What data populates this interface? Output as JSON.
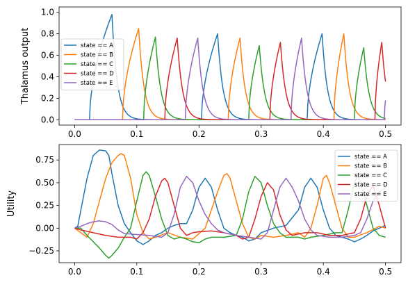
{
  "chart_data": [
    {
      "type": "line",
      "ylabel": "Thalamus output",
      "xlim": [
        -0.025,
        0.525
      ],
      "ylim": [
        -0.05,
        1.05
      ],
      "xticks": [
        "0.0",
        "0.1",
        "0.2",
        "0.3",
        "0.4",
        "0.5"
      ],
      "xtick_values": [
        0.0,
        0.1,
        0.2,
        0.3,
        0.4,
        0.5
      ],
      "yticks": [
        "0.0",
        "0.2",
        "0.4",
        "0.6",
        "0.8",
        "1.0"
      ],
      "ytick_values": [
        0.0,
        0.2,
        0.4,
        0.6,
        0.8,
        1.0
      ],
      "legend_position": "center-left",
      "series": [
        {
          "name": "state == A",
          "color": "#1f77b4",
          "pulses": [
            {
              "onset": 0.024,
              "peak_t": 0.06,
              "amp": 0.98
            },
            {
              "onset": 0.204,
              "peak_t": 0.23,
              "amp": 0.8
            },
            {
              "onset": 0.374,
              "peak_t": 0.398,
              "amp": 0.8
            }
          ]
        },
        {
          "name": "state == B",
          "color": "#ff7f0e",
          "pulses": [
            {
              "onset": 0.077,
              "peak_t": 0.103,
              "amp": 0.85
            },
            {
              "onset": 0.247,
              "peak_t": 0.266,
              "amp": 0.76
            },
            {
              "onset": 0.417,
              "peak_t": 0.433,
              "amp": 0.8
            }
          ]
        },
        {
          "name": "state == C",
          "color": "#2ca02c",
          "pulses": [
            {
              "onset": 0.111,
              "peak_t": 0.13,
              "amp": 0.77
            },
            {
              "onset": 0.28,
              "peak_t": 0.297,
              "amp": 0.69
            },
            {
              "onset": 0.45,
              "peak_t": 0.465,
              "amp": 0.67
            }
          ]
        },
        {
          "name": "state == D",
          "color": "#d62728",
          "pulses": [
            {
              "onset": 0.145,
              "peak_t": 0.165,
              "amp": 0.76
            },
            {
              "onset": 0.314,
              "peak_t": 0.331,
              "amp": 0.72
            },
            {
              "onset": 0.483,
              "peak_t": 0.494,
              "amp": 0.72
            }
          ]
        },
        {
          "name": "state == E",
          "color": "#9467bd",
          "pulses": [
            {
              "onset": 0.178,
              "peak_t": 0.198,
              "amp": 0.76
            },
            {
              "onset": 0.348,
              "peak_t": 0.365,
              "amp": 0.76
            },
            {
              "onset": 0.498,
              "peak_t": 0.5,
              "amp": 0.18
            }
          ]
        }
      ]
    },
    {
      "type": "line",
      "ylabel": "Utility",
      "xlim": [
        -0.025,
        0.525
      ],
      "ylim": [
        -0.38,
        0.92
      ],
      "xticks": [
        "0.0",
        "0.1",
        "0.2",
        "0.3",
        "0.4",
        "0.5"
      ],
      "xtick_values": [
        0.0,
        0.1,
        0.2,
        0.3,
        0.4,
        0.5
      ],
      "yticks": [
        "−0.25",
        "0.00",
        "0.25",
        "0.50",
        "0.75"
      ],
      "ytick_values": [
        -0.25,
        0.0,
        0.25,
        0.5,
        0.75
      ],
      "legend_position": "upper-right",
      "series": [
        {
          "name": "state == A",
          "color": "#1f77b4",
          "points": [
            [
              0,
              0
            ],
            [
              0.005,
              0.02
            ],
            [
              0.02,
              0.55
            ],
            [
              0.03,
              0.8
            ],
            [
              0.04,
              0.86
            ],
            [
              0.05,
              0.85
            ],
            [
              0.055,
              0.8
            ],
            [
              0.06,
              0.6
            ],
            [
              0.07,
              0.25
            ],
            [
              0.08,
              0.05
            ],
            [
              0.09,
              -0.05
            ],
            [
              0.1,
              -0.14
            ],
            [
              0.11,
              -0.18
            ],
            [
              0.12,
              -0.14
            ],
            [
              0.13,
              -0.08
            ],
            [
              0.14,
              -0.05
            ],
            [
              0.15,
              0.0
            ],
            [
              0.16,
              0.03
            ],
            [
              0.17,
              0.05
            ],
            [
              0.18,
              0.05
            ],
            [
              0.19,
              0.2
            ],
            [
              0.2,
              0.45
            ],
            [
              0.21,
              0.55
            ],
            [
              0.22,
              0.45
            ],
            [
              0.23,
              0.2
            ],
            [
              0.24,
              0.0
            ],
            [
              0.25,
              -0.05
            ],
            [
              0.26,
              -0.08
            ],
            [
              0.27,
              -0.1
            ],
            [
              0.28,
              -0.14
            ],
            [
              0.29,
              -0.12
            ],
            [
              0.3,
              -0.05
            ],
            [
              0.32,
              0.0
            ],
            [
              0.34,
              0.03
            ],
            [
              0.36,
              0.2
            ],
            [
              0.37,
              0.45
            ],
            [
              0.38,
              0.55
            ],
            [
              0.39,
              0.45
            ],
            [
              0.4,
              0.2
            ],
            [
              0.41,
              0.0
            ],
            [
              0.42,
              -0.08
            ],
            [
              0.43,
              -0.1
            ],
            [
              0.44,
              -0.12
            ],
            [
              0.45,
              -0.15
            ],
            [
              0.46,
              -0.12
            ],
            [
              0.47,
              -0.08
            ],
            [
              0.48,
              -0.03
            ],
            [
              0.49,
              0.0
            ],
            [
              0.5,
              0.03
            ]
          ]
        },
        {
          "name": "state == B",
          "color": "#ff7f0e",
          "points": [
            [
              0,
              0
            ],
            [
              0.01,
              -0.05
            ],
            [
              0.02,
              -0.1
            ],
            [
              0.03,
              0.05
            ],
            [
              0.04,
              0.3
            ],
            [
              0.05,
              0.55
            ],
            [
              0.06,
              0.72
            ],
            [
              0.07,
              0.8
            ],
            [
              0.075,
              0.82
            ],
            [
              0.08,
              0.8
            ],
            [
              0.09,
              0.55
            ],
            [
              0.1,
              0.15
            ],
            [
              0.11,
              -0.05
            ],
            [
              0.12,
              -0.12
            ],
            [
              0.13,
              -0.1
            ],
            [
              0.15,
              -0.05
            ],
            [
              0.17,
              -0.1
            ],
            [
              0.19,
              -0.12
            ],
            [
              0.21,
              0.0
            ],
            [
              0.22,
              0.2
            ],
            [
              0.23,
              0.4
            ],
            [
              0.24,
              0.58
            ],
            [
              0.245,
              0.6
            ],
            [
              0.25,
              0.55
            ],
            [
              0.26,
              0.3
            ],
            [
              0.27,
              0.05
            ],
            [
              0.28,
              -0.1
            ],
            [
              0.29,
              -0.12
            ],
            [
              0.3,
              -0.08
            ],
            [
              0.32,
              -0.1
            ],
            [
              0.34,
              -0.08
            ],
            [
              0.36,
              -0.05
            ],
            [
              0.37,
              -0.1
            ],
            [
              0.38,
              0.0
            ],
            [
              0.39,
              0.25
            ],
            [
              0.4,
              0.55
            ],
            [
              0.405,
              0.58
            ],
            [
              0.41,
              0.5
            ],
            [
              0.42,
              0.25
            ],
            [
              0.43,
              0.0
            ],
            [
              0.44,
              -0.1
            ],
            [
              0.45,
              -0.1
            ],
            [
              0.47,
              -0.05
            ],
            [
              0.49,
              0.02
            ],
            [
              0.5,
              0.0
            ]
          ]
        },
        {
          "name": "state == C",
          "color": "#2ca02c",
          "points": [
            [
              0,
              0
            ],
            [
              0.01,
              0.0
            ],
            [
              0.02,
              -0.08
            ],
            [
              0.03,
              -0.15
            ],
            [
              0.04,
              -0.22
            ],
            [
              0.05,
              -0.3
            ],
            [
              0.055,
              -0.33
            ],
            [
              0.06,
              -0.3
            ],
            [
              0.07,
              -0.22
            ],
            [
              0.08,
              -0.1
            ],
            [
              0.09,
              0.0
            ],
            [
              0.1,
              0.3
            ],
            [
              0.11,
              0.58
            ],
            [
              0.115,
              0.62
            ],
            [
              0.12,
              0.58
            ],
            [
              0.13,
              0.35
            ],
            [
              0.14,
              0.1
            ],
            [
              0.15,
              -0.08
            ],
            [
              0.16,
              -0.12
            ],
            [
              0.17,
              -0.1
            ],
            [
              0.18,
              -0.12
            ],
            [
              0.19,
              -0.15
            ],
            [
              0.2,
              -0.16
            ],
            [
              0.21,
              -0.12
            ],
            [
              0.22,
              -0.1
            ],
            [
              0.24,
              -0.1
            ],
            [
              0.26,
              -0.08
            ],
            [
              0.27,
              0.1
            ],
            [
              0.28,
              0.4
            ],
            [
              0.29,
              0.57
            ],
            [
              0.3,
              0.5
            ],
            [
              0.31,
              0.25
            ],
            [
              0.32,
              0.05
            ],
            [
              0.33,
              -0.05
            ],
            [
              0.34,
              -0.1
            ],
            [
              0.36,
              -0.1
            ],
            [
              0.37,
              -0.12
            ],
            [
              0.38,
              -0.1
            ],
            [
              0.4,
              -0.08
            ],
            [
              0.42,
              -0.05
            ],
            [
              0.43,
              -0.05
            ],
            [
              0.44,
              0.2
            ],
            [
              0.45,
              0.5
            ],
            [
              0.455,
              0.57
            ],
            [
              0.46,
              0.5
            ],
            [
              0.47,
              0.25
            ],
            [
              0.48,
              0.0
            ],
            [
              0.49,
              -0.08
            ],
            [
              0.5,
              -0.1
            ]
          ]
        },
        {
          "name": "state == D",
          "color": "#d62728",
          "points": [
            [
              0,
              0
            ],
            [
              0.01,
              -0.02
            ],
            [
              0.03,
              -0.05
            ],
            [
              0.05,
              -0.08
            ],
            [
              0.07,
              -0.1
            ],
            [
              0.09,
              -0.1
            ],
            [
              0.1,
              -0.12
            ],
            [
              0.11,
              -0.05
            ],
            [
              0.12,
              0.1
            ],
            [
              0.13,
              0.35
            ],
            [
              0.14,
              0.52
            ],
            [
              0.145,
              0.55
            ],
            [
              0.15,
              0.5
            ],
            [
              0.16,
              0.25
            ],
            [
              0.17,
              0.0
            ],
            [
              0.18,
              -0.08
            ],
            [
              0.19,
              -0.05
            ],
            [
              0.2,
              -0.04
            ],
            [
              0.22,
              -0.03
            ],
            [
              0.24,
              -0.05
            ],
            [
              0.26,
              -0.08
            ],
            [
              0.27,
              -0.12
            ],
            [
              0.28,
              -0.1
            ],
            [
              0.29,
              0.1
            ],
            [
              0.3,
              0.35
            ],
            [
              0.31,
              0.5
            ],
            [
              0.32,
              0.42
            ],
            [
              0.33,
              0.15
            ],
            [
              0.34,
              -0.02
            ],
            [
              0.35,
              -0.08
            ],
            [
              0.37,
              -0.05
            ],
            [
              0.39,
              -0.05
            ],
            [
              0.41,
              -0.08
            ],
            [
              0.43,
              -0.08
            ],
            [
              0.45,
              -0.05
            ],
            [
              0.46,
              0.1
            ],
            [
              0.47,
              0.35
            ],
            [
              0.48,
              0.47
            ],
            [
              0.49,
              0.25
            ],
            [
              0.5,
              0.0
            ]
          ]
        },
        {
          "name": "state == E",
          "color": "#9467bd",
          "points": [
            [
              0,
              0
            ],
            [
              0.01,
              0.02
            ],
            [
              0.02,
              0.05
            ],
            [
              0.03,
              0.07
            ],
            [
              0.04,
              0.08
            ],
            [
              0.05,
              0.07
            ],
            [
              0.06,
              0.04
            ],
            [
              0.07,
              -0.02
            ],
            [
              0.08,
              -0.06
            ],
            [
              0.1,
              -0.07
            ],
            [
              0.12,
              -0.08
            ],
            [
              0.14,
              -0.1
            ],
            [
              0.15,
              -0.05
            ],
            [
              0.16,
              0.15
            ],
            [
              0.17,
              0.45
            ],
            [
              0.18,
              0.57
            ],
            [
              0.19,
              0.5
            ],
            [
              0.2,
              0.3
            ],
            [
              0.21,
              0.15
            ],
            [
              0.22,
              0.05
            ],
            [
              0.23,
              -0.02
            ],
            [
              0.24,
              -0.05
            ],
            [
              0.26,
              -0.08
            ],
            [
              0.28,
              -0.1
            ],
            [
              0.3,
              -0.12
            ],
            [
              0.31,
              -0.05
            ],
            [
              0.32,
              0.2
            ],
            [
              0.33,
              0.45
            ],
            [
              0.34,
              0.55
            ],
            [
              0.35,
              0.45
            ],
            [
              0.36,
              0.3
            ],
            [
              0.37,
              0.1
            ],
            [
              0.38,
              -0.02
            ],
            [
              0.39,
              -0.08
            ],
            [
              0.41,
              -0.1
            ],
            [
              0.43,
              -0.1
            ],
            [
              0.45,
              -0.08
            ],
            [
              0.46,
              -0.05
            ],
            [
              0.47,
              0.1
            ],
            [
              0.48,
              0.3
            ],
            [
              0.49,
              0.4
            ],
            [
              0.5,
              0.45
            ]
          ]
        }
      ]
    }
  ]
}
